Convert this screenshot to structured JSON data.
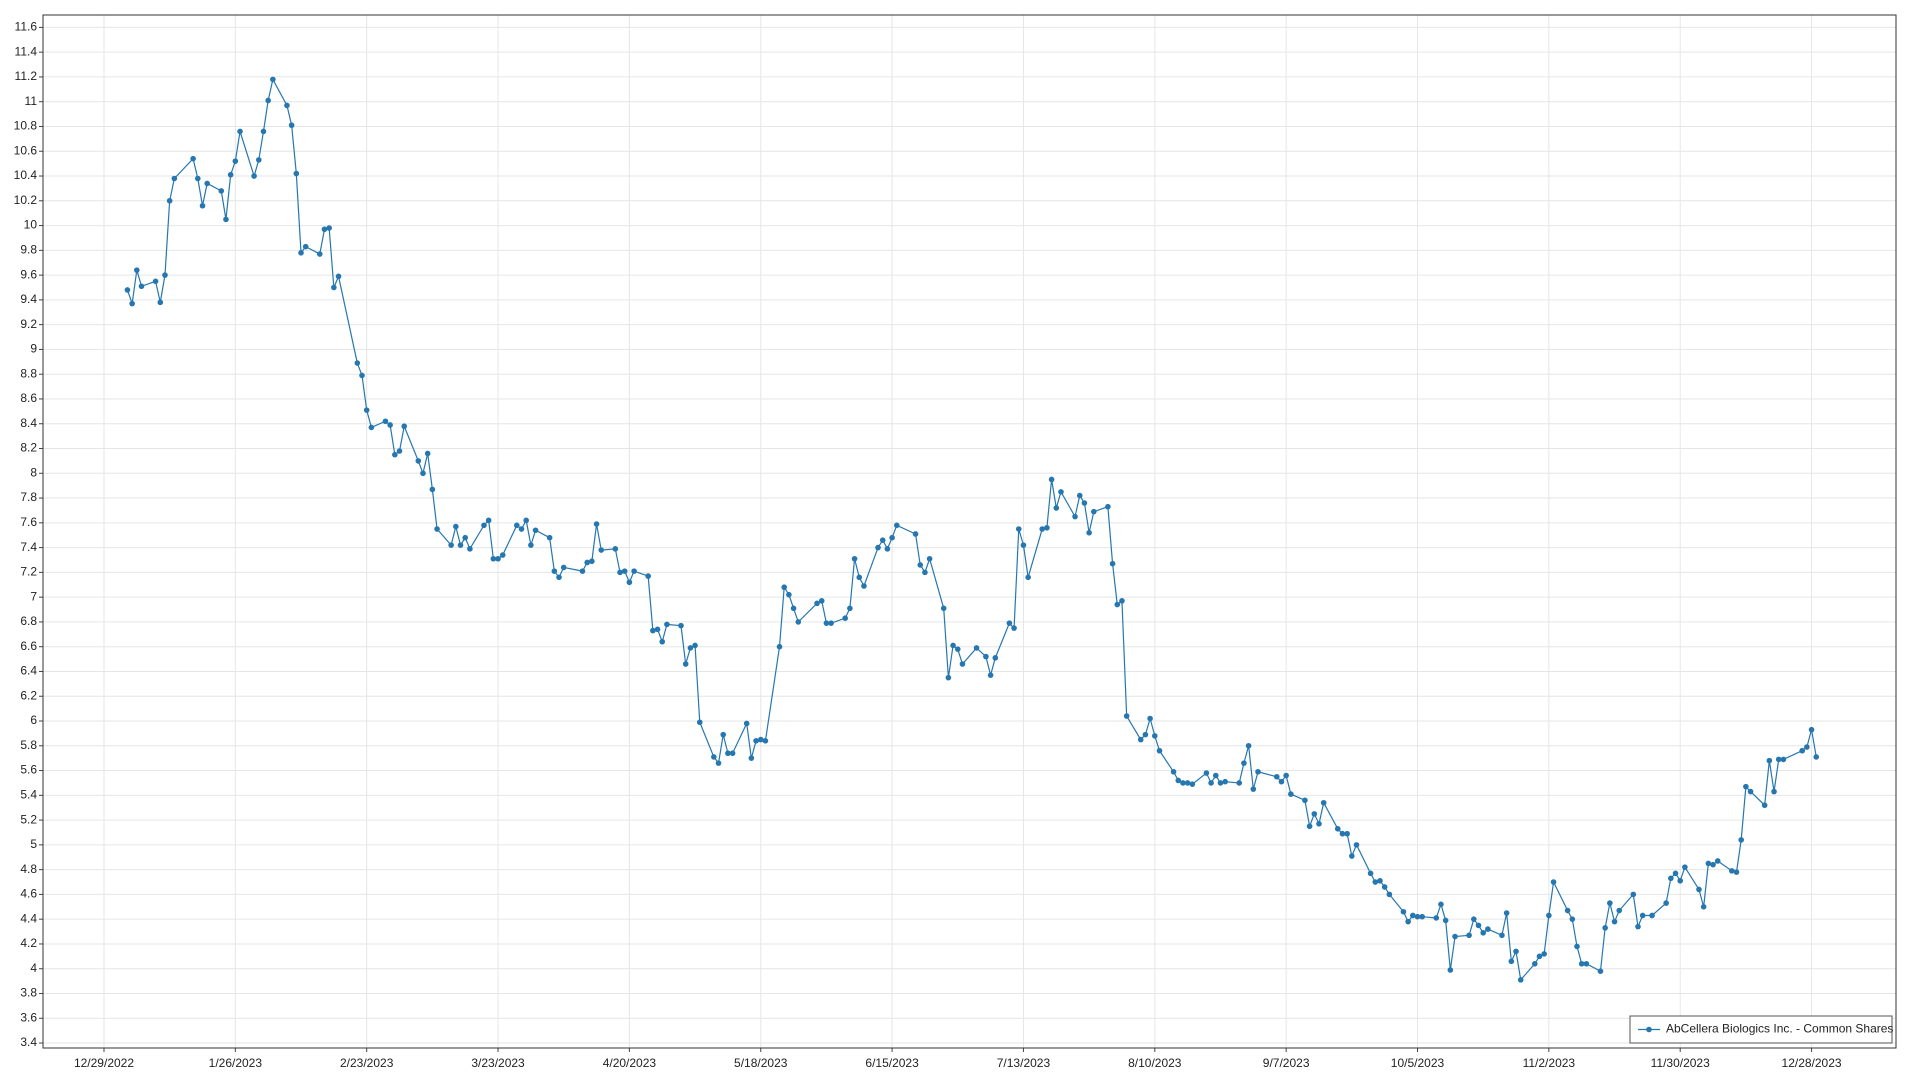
{
  "chart_data": {
    "type": "line",
    "x": [
      "1/3/2023",
      "1/4/2023",
      "1/5/2023",
      "1/6/2023",
      "1/9/2023",
      "1/10/2023",
      "1/11/2023",
      "1/12/2023",
      "1/13/2023",
      "1/17/2023",
      "1/18/2023",
      "1/19/2023",
      "1/20/2023",
      "1/23/2023",
      "1/24/2023",
      "1/25/2023",
      "1/26/2023",
      "1/27/2023",
      "1/30/2023",
      "1/31/2023",
      "2/1/2023",
      "2/2/2023",
      "2/3/2023",
      "2/6/2023",
      "2/7/2023",
      "2/8/2023",
      "2/9/2023",
      "2/10/2023",
      "2/13/2023",
      "2/14/2023",
      "2/15/2023",
      "2/16/2023",
      "2/17/2023",
      "2/21/2023",
      "2/22/2023",
      "2/23/2023",
      "2/24/2023",
      "2/27/2023",
      "2/28/2023",
      "3/1/2023",
      "3/2/2023",
      "3/3/2023",
      "3/6/2023",
      "3/7/2023",
      "3/8/2023",
      "3/9/2023",
      "3/10/2023",
      "3/13/2023",
      "3/14/2023",
      "3/15/2023",
      "3/16/2023",
      "3/17/2023",
      "3/20/2023",
      "3/21/2023",
      "3/22/2023",
      "3/23/2023",
      "3/24/2023",
      "3/27/2023",
      "3/28/2023",
      "3/29/2023",
      "3/30/2023",
      "3/31/2023",
      "4/3/2023",
      "4/4/2023",
      "4/5/2023",
      "4/6/2023",
      "4/10/2023",
      "4/11/2023",
      "4/12/2023",
      "4/13/2023",
      "4/14/2023",
      "4/17/2023",
      "4/18/2023",
      "4/19/2023",
      "4/20/2023",
      "4/21/2023",
      "4/24/2023",
      "4/25/2023",
      "4/26/2023",
      "4/27/2023",
      "4/28/2023",
      "5/1/2023",
      "5/2/2023",
      "5/3/2023",
      "5/4/2023",
      "5/5/2023",
      "5/8/2023",
      "5/9/2023",
      "5/10/2023",
      "5/11/2023",
      "5/12/2023",
      "5/15/2023",
      "5/16/2023",
      "5/17/2023",
      "5/18/2023",
      "5/19/2023",
      "5/22/2023",
      "5/23/2023",
      "5/24/2023",
      "5/25/2023",
      "5/26/2023",
      "5/30/2023",
      "5/31/2023",
      "6/1/2023",
      "6/2/2023",
      "6/5/2023",
      "6/6/2023",
      "6/7/2023",
      "6/8/2023",
      "6/9/2023",
      "6/12/2023",
      "6/13/2023",
      "6/14/2023",
      "6/15/2023",
      "6/16/2023",
      "6/20/2023",
      "6/21/2023",
      "6/22/2023",
      "6/23/2023",
      "6/26/2023",
      "6/27/2023",
      "6/28/2023",
      "6/29/2023",
      "6/30/2023",
      "7/3/2023",
      "7/5/2023",
      "7/6/2023",
      "7/7/2023",
      "7/10/2023",
      "7/11/2023",
      "7/12/2023",
      "7/13/2023",
      "7/14/2023",
      "7/17/2023",
      "7/18/2023",
      "7/19/2023",
      "7/20/2023",
      "7/21/2023",
      "7/24/2023",
      "7/25/2023",
      "7/26/2023",
      "7/27/2023",
      "7/28/2023",
      "7/31/2023",
      "8/1/2023",
      "8/2/2023",
      "8/3/2023",
      "8/4/2023",
      "8/7/2023",
      "8/8/2023",
      "8/9/2023",
      "8/10/2023",
      "8/11/2023",
      "8/14/2023",
      "8/15/2023",
      "8/16/2023",
      "8/17/2023",
      "8/18/2023",
      "8/21/2023",
      "8/22/2023",
      "8/23/2023",
      "8/24/2023",
      "8/25/2023",
      "8/28/2023",
      "8/29/2023",
      "8/30/2023",
      "8/31/2023",
      "9/1/2023",
      "9/5/2023",
      "9/6/2023",
      "9/7/2023",
      "9/8/2023",
      "9/11/2023",
      "9/12/2023",
      "9/13/2023",
      "9/14/2023",
      "9/15/2023",
      "9/18/2023",
      "9/19/2023",
      "9/20/2023",
      "9/21/2023",
      "9/22/2023",
      "9/25/2023",
      "9/26/2023",
      "9/27/2023",
      "9/28/2023",
      "9/29/2023",
      "10/2/2023",
      "10/3/2023",
      "10/4/2023",
      "10/5/2023",
      "10/6/2023",
      "10/9/2023",
      "10/10/2023",
      "10/11/2023",
      "10/12/2023",
      "10/13/2023",
      "10/16/2023",
      "10/17/2023",
      "10/18/2023",
      "10/19/2023",
      "10/20/2023",
      "10/23/2023",
      "10/24/2023",
      "10/25/2023",
      "10/26/2023",
      "10/27/2023",
      "10/30/2023",
      "10/31/2023",
      "11/1/2023",
      "11/2/2023",
      "11/3/2023",
      "11/6/2023",
      "11/7/2023",
      "11/8/2023",
      "11/9/2023",
      "11/10/2023",
      "11/13/2023",
      "11/14/2023",
      "11/15/2023",
      "11/16/2023",
      "11/17/2023",
      "11/20/2023",
      "11/21/2023",
      "11/22/2023",
      "11/24/2023",
      "11/27/2023",
      "11/28/2023",
      "11/29/2023",
      "11/30/2023",
      "12/1/2023",
      "12/4/2023",
      "12/5/2023",
      "12/6/2023",
      "12/7/2023",
      "12/8/2023",
      "12/11/2023",
      "12/12/2023",
      "12/13/2023",
      "12/14/2023",
      "12/15/2023",
      "12/18/2023",
      "12/19/2023",
      "12/20/2023",
      "12/21/2023",
      "12/22/2023",
      "12/26/2023",
      "12/27/2023",
      "12/28/2023",
      "12/29/2023"
    ],
    "series": [
      {
        "name": "AbCellera Biologics Inc. - Common Shares",
        "color": "#2677b0",
        "values": [
          9.48,
          9.37,
          9.64,
          9.51,
          9.55,
          9.38,
          9.6,
          10.2,
          10.38,
          10.54,
          10.38,
          10.16,
          10.34,
          10.28,
          10.05,
          10.41,
          10.52,
          10.76,
          10.4,
          10.53,
          10.76,
          11.01,
          11.18,
          10.97,
          10.81,
          10.42,
          9.78,
          9.83,
          9.77,
          9.97,
          9.98,
          9.5,
          9.59,
          8.89,
          8.79,
          8.51,
          8.37,
          8.42,
          8.39,
          8.15,
          8.18,
          8.38,
          8.1,
          8.0,
          8.16,
          7.87,
          7.55,
          7.42,
          7.57,
          7.42,
          7.48,
          7.39,
          7.58,
          7.62,
          7.31,
          7.31,
          7.34,
          7.58,
          7.55,
          7.62,
          7.42,
          7.54,
          7.48,
          7.21,
          7.16,
          7.24,
          7.21,
          7.28,
          7.29,
          7.59,
          7.38,
          7.39,
          7.2,
          7.21,
          7.12,
          7.21,
          7.17,
          6.73,
          6.74,
          6.64,
          6.78,
          6.77,
          6.46,
          6.59,
          6.61,
          5.99,
          5.71,
          5.66,
          5.89,
          5.74,
          5.74,
          5.98,
          5.7,
          5.84,
          5.85,
          5.84,
          6.6,
          7.08,
          7.02,
          6.91,
          6.8,
          6.95,
          6.97,
          6.79,
          6.79,
          6.83,
          6.91,
          7.31,
          7.16,
          7.09,
          7.4,
          7.46,
          7.39,
          7.48,
          7.58,
          7.51,
          7.26,
          7.2,
          7.31,
          6.91,
          6.35,
          6.61,
          6.58,
          6.46,
          6.59,
          6.52,
          6.37,
          6.51,
          6.79,
          6.75,
          7.55,
          7.42,
          7.16,
          7.55,
          7.56,
          7.95,
          7.72,
          7.85,
          7.65,
          7.82,
          7.76,
          7.52,
          7.69,
          7.73,
          7.27,
          6.94,
          6.97,
          6.04,
          5.85,
          5.89,
          6.02,
          5.88,
          5.76,
          5.59,
          5.52,
          5.5,
          5.5,
          5.49,
          5.58,
          5.5,
          5.56,
          5.5,
          5.51,
          5.5,
          5.66,
          5.8,
          5.45,
          5.59,
          5.55,
          5.51,
          5.56,
          5.41,
          5.36,
          5.15,
          5.25,
          5.17,
          5.34,
          5.13,
          5.09,
          5.09,
          4.91,
          5.0,
          4.77,
          4.7,
          4.71,
          4.66,
          4.6,
          4.46,
          4.38,
          4.43,
          4.42,
          4.42,
          4.41,
          4.52,
          4.39,
          3.99,
          4.26,
          4.27,
          4.4,
          4.35,
          4.29,
          4.32,
          4.27,
          4.45,
          4.06,
          4.14,
          3.91,
          4.04,
          4.1,
          4.12,
          4.43,
          4.7,
          4.47,
          4.4,
          4.18,
          4.04,
          4.04,
          3.98,
          4.33,
          4.53,
          4.38,
          4.47,
          4.6,
          4.34,
          4.43,
          4.43,
          4.53,
          4.73,
          4.77,
          4.71,
          4.82,
          4.64,
          4.5,
          4.85,
          4.84,
          4.87,
          4.79,
          4.78,
          5.04,
          5.47,
          5.43,
          5.32,
          5.68,
          5.43,
          5.69,
          5.69,
          5.76,
          5.79,
          5.93,
          5.71
        ]
      }
    ],
    "xlim": [
      "12/16/2022",
      "1/15/2024"
    ],
    "xticks": [
      "12/29/2022",
      "1/26/2023",
      "2/23/2023",
      "3/23/2023",
      "4/20/2023",
      "5/18/2023",
      "6/15/2023",
      "7/13/2023",
      "8/10/2023",
      "9/7/2023",
      "10/5/2023",
      "11/2/2023",
      "11/30/2023",
      "12/28/2023"
    ],
    "ylim": [
      3.36,
      11.7
    ],
    "yticks": [
      3.4,
      3.6,
      3.8,
      4,
      4.2,
      4.4,
      4.6,
      4.8,
      5,
      5.2,
      5.4,
      5.6,
      5.8,
      6,
      6.2,
      6.4,
      6.6,
      6.8,
      7,
      7.2,
      7.4,
      7.6,
      7.8,
      8,
      8.2,
      8.4,
      8.6,
      8.8,
      9,
      9.2,
      9.4,
      9.6,
      9.8,
      10,
      10.2,
      10.4,
      10.6,
      10.8,
      11,
      11.2,
      11.4,
      11.6
    ],
    "grid": true,
    "legend": "lower right"
  }
}
